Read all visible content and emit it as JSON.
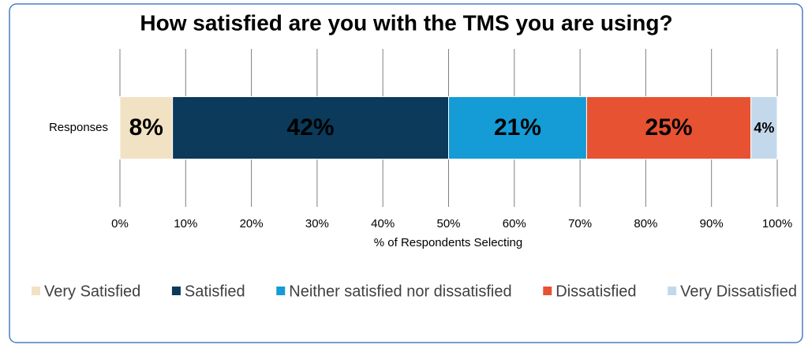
{
  "chart_data": {
    "type": "stacked-bar-horizontal",
    "title": "How satisfied are you with the TMS you are using?",
    "x_label": "% of Respondents Selecting",
    "categories": [
      "Responses"
    ],
    "series": [
      {
        "name": "Very Satisfied",
        "color": "#f2e2c4",
        "label_color": "#595959",
        "values": [
          8
        ],
        "value_labels": [
          "8%"
        ]
      },
      {
        "name": "Satisfied",
        "color": "#0b3a5a",
        "label_color": "#ffffff",
        "values": [
          42
        ],
        "value_labels": [
          "42%"
        ]
      },
      {
        "name": "Neither satisfied nor dissatisfied",
        "color": "#159bd5",
        "label_color": "#ffffff",
        "values": [
          21
        ],
        "value_labels": [
          "21%"
        ]
      },
      {
        "name": "Dissatisfied",
        "color": "#e65232",
        "label_color": "#ffffff",
        "values": [
          25
        ],
        "value_labels": [
          "25%"
        ]
      },
      {
        "name": "Very Dissatisfied",
        "color": "#c3d8eb",
        "label_color": "#000000",
        "values": [
          4
        ],
        "value_labels": [
          "4%"
        ]
      }
    ],
    "xlim": [
      0,
      100
    ],
    "xticks": [
      {
        "value": 0,
        "label": "0%"
      },
      {
        "value": 10,
        "label": "10%"
      },
      {
        "value": 20,
        "label": "20%"
      },
      {
        "value": 30,
        "label": "30%"
      },
      {
        "value": 40,
        "label": "40%"
      },
      {
        "value": 50,
        "label": "50%"
      },
      {
        "value": 60,
        "label": "60%"
      },
      {
        "value": 70,
        "label": "70%"
      },
      {
        "value": 80,
        "label": "80%"
      },
      {
        "value": 90,
        "label": "90%"
      },
      {
        "value": 100,
        "label": "100%"
      }
    ],
    "grid": true,
    "legend": "bottom"
  }
}
